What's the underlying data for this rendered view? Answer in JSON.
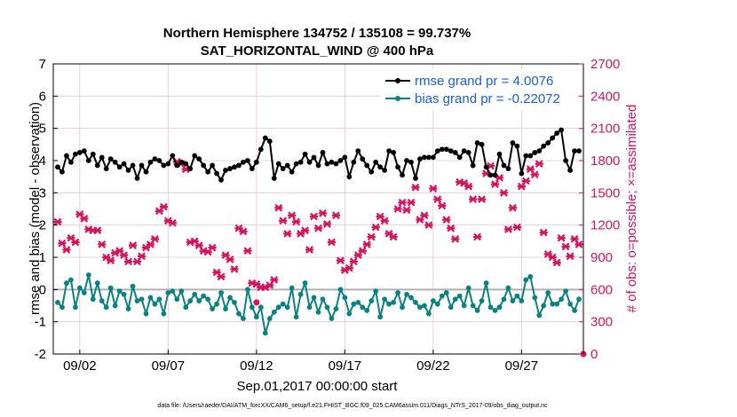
{
  "chart_data": {
    "type": "line",
    "title": "Northern Hemisphere 134752 / 135108 = 99.737%",
    "subtitle": "SAT_HORIZONTAL_WIND @ 400 hPa",
    "xlabel": "Sep.01,2017 00:00:00 start",
    "ylabel_left": "rmse and bias (model - observation)",
    "ylabel_right": "# of obs: o=possible; ×=assimilated",
    "footnote": "data file: /Users/raeder/DAI/ATM_forcXX/CAM6_setup/f.e21.FHIST_BGC.f09_025.CAM6assim.011/Diags_NTrS_2017-09/obs_diag_output.nc",
    "xlim": [
      0.5,
      30.5
    ],
    "ylim_left": [
      -2,
      7
    ],
    "ylim_right": [
      0,
      2700
    ],
    "x_ticks": [
      2,
      7,
      12,
      17,
      22,
      27
    ],
    "x_tick_labels": [
      "09/02",
      "09/07",
      "09/12",
      "09/17",
      "09/22",
      "09/27"
    ],
    "y_ticks_left": [
      -2,
      -1,
      0,
      1,
      2,
      3,
      4,
      5,
      6,
      7
    ],
    "y_ticks_right": [
      0,
      300,
      600,
      900,
      1200,
      1500,
      1800,
      2100,
      2400,
      2700
    ],
    "grid": true,
    "zero_line": true,
    "legend": {
      "placement": "top-right",
      "entries": [
        "rmse grand pr = 4.0076",
        "bias grand pr = -0.22072"
      ]
    },
    "colors": {
      "rmse": "#000000",
      "bias": "#0b8282",
      "counts": "#d6145e",
      "legend_text": "#1a5fd6",
      "grid": "#e6c6d2",
      "zero_line": "#b0b0b0"
    },
    "x": [
      0.75,
      1.0,
      1.25,
      1.5,
      1.75,
      2.0,
      2.25,
      2.5,
      2.75,
      3.0,
      3.25,
      3.5,
      3.75,
      4.0,
      4.25,
      4.5,
      4.75,
      5.0,
      5.25,
      5.5,
      5.75,
      6.0,
      6.25,
      6.5,
      6.75,
      7.0,
      7.25,
      7.5,
      7.75,
      8.0,
      8.25,
      8.5,
      8.75,
      9.0,
      9.25,
      9.5,
      9.75,
      10.0,
      10.25,
      10.5,
      10.75,
      11.0,
      11.25,
      11.5,
      11.75,
      12.0,
      12.25,
      12.5,
      12.75,
      13.0,
      13.25,
      13.5,
      13.75,
      14.0,
      14.25,
      14.5,
      14.75,
      15.0,
      15.25,
      15.5,
      15.75,
      16.0,
      16.25,
      16.5,
      16.75,
      17.0,
      17.25,
      17.5,
      17.75,
      18.0,
      18.25,
      18.5,
      18.75,
      19.0,
      19.25,
      19.5,
      19.75,
      20.0,
      20.25,
      20.5,
      20.75,
      21.0,
      21.25,
      21.5,
      21.75,
      22.0,
      22.25,
      22.5,
      22.75,
      23.0,
      23.25,
      23.5,
      23.75,
      24.0,
      24.25,
      24.5,
      24.75,
      25.0,
      25.25,
      25.5,
      25.75,
      26.0,
      26.25,
      26.5,
      26.75,
      27.0,
      27.25,
      27.5,
      27.75,
      28.0,
      28.25,
      28.5,
      28.75,
      29.0,
      29.25,
      29.5,
      29.75,
      30.0,
      30.25
    ],
    "series": [
      {
        "name": "rmse grand pr = 4.0076",
        "axis": "left",
        "values": [
          3.8,
          3.65,
          4.15,
          3.95,
          4.2,
          4.25,
          4.3,
          4.0,
          4.2,
          3.85,
          4.1,
          3.75,
          4.05,
          3.95,
          3.8,
          3.9,
          3.7,
          3.85,
          3.45,
          3.85,
          3.65,
          3.95,
          4.05,
          4.0,
          3.85,
          3.9,
          4.15,
          3.85,
          3.95,
          3.9,
          3.75,
          4.15,
          4.05,
          3.85,
          3.65,
          3.85,
          3.6,
          3.4,
          3.7,
          3.75,
          3.8,
          3.85,
          3.95,
          4.0,
          3.75,
          3.95,
          4.35,
          4.7,
          4.6,
          3.45,
          3.9,
          3.75,
          3.85,
          3.65,
          3.9,
          3.95,
          4.2,
          3.95,
          4.1,
          3.85,
          4.25,
          3.9,
          3.95,
          3.9,
          4.0,
          4.1,
          3.5,
          3.95,
          4.3,
          4.05,
          3.85,
          3.65,
          3.95,
          3.8,
          3.7,
          4.3,
          4.25,
          3.8,
          3.55,
          4.0,
          3.95,
          3.45,
          4.05,
          4.1,
          4.1,
          4.1,
          4.3,
          4.35,
          4.35,
          4.3,
          4.25,
          4.1,
          4.3,
          4.25,
          3.85,
          4.55,
          4.5,
          3.8,
          3.55,
          3.55,
          4.2,
          3.85,
          3.75,
          4.55,
          4.45,
          3.6,
          4.15,
          4.15,
          4.25,
          4.3,
          4.45,
          4.55,
          4.7,
          4.85,
          4.95,
          4.0,
          3.7,
          4.3,
          4.3
        ],
        "marker": "filled-circle"
      },
      {
        "name": "bias grand pr = -0.22072",
        "axis": "left",
        "values": [
          -0.4,
          -0.55,
          0.2,
          0.3,
          -0.55,
          0.05,
          -0.1,
          0.45,
          -0.3,
          0.2,
          -0.35,
          -0.55,
          0.05,
          -0.5,
          -0.05,
          -0.15,
          -0.6,
          0.1,
          -0.35,
          -0.3,
          -0.75,
          -0.25,
          -0.45,
          -0.3,
          -0.75,
          -0.1,
          -0.05,
          -0.3,
          -0.05,
          -0.55,
          -0.35,
          -0.15,
          -0.35,
          -0.2,
          -0.3,
          -0.6,
          -0.45,
          -0.1,
          -0.6,
          -0.25,
          -0.4,
          -0.75,
          -0.9,
          0.0,
          -0.55,
          -0.85,
          -0.55,
          -1.35,
          -0.9,
          -0.7,
          -0.55,
          -0.45,
          -0.55,
          0.05,
          -0.85,
          -0.15,
          0.2,
          -0.55,
          -0.25,
          -0.7,
          -0.3,
          -0.55,
          -0.9,
          -0.6,
          0.0,
          -0.25,
          -0.75,
          -0.45,
          -0.4,
          -0.55,
          -0.65,
          -0.35,
          -0.05,
          -0.85,
          -0.3,
          -0.45,
          -0.4,
          -0.1,
          -0.55,
          -0.15,
          -0.25,
          -0.4,
          -0.55,
          -0.5,
          -0.75,
          -0.35,
          -0.45,
          -0.2,
          -0.1,
          -0.55,
          -0.3,
          -0.2,
          -0.5,
          0.05,
          -0.5,
          -0.65,
          -0.35,
          0.2,
          -0.55,
          -0.65,
          -0.55,
          -0.3,
          0.05,
          -0.35,
          -0.2,
          -0.35,
          0.3,
          0.4,
          -0.25,
          -0.8,
          -0.5,
          -0.1,
          -0.45,
          -0.45,
          -0.3,
          -0.05,
          -0.45,
          -0.65,
          -0.3
        ],
        "marker": "filled-circle"
      },
      {
        "name": "assimilated",
        "axis": "right",
        "values": [
          1230,
          1030,
          970,
          1080,
          1040,
          1300,
          1260,
          1160,
          1150,
          1150,
          1020,
          900,
          870,
          940,
          960,
          920,
          860,
          1010,
          860,
          910,
          990,
          1020,
          1070,
          1330,
          1370,
          1240,
          1220,
          1790,
          1770,
          1720,
          1040,
          1050,
          1010,
          960,
          950,
          990,
          760,
          720,
          920,
          880,
          790,
          1170,
          1140,
          960,
          660,
          650,
          620,
          620,
          640,
          690,
          1360,
          1240,
          1120,
          1290,
          1230,
          1120,
          1150,
          970,
          1280,
          1170,
          1310,
          1210,
          1040,
          1290,
          870,
          780,
          800,
          860,
          920,
          960,
          1020,
          1090,
          1180,
          1280,
          1240,
          1120,
          1090,
          1350,
          1410,
          1340,
          1410,
          1550,
          1250,
          1290,
          1200,
          1540,
          1440,
          1380,
          1250,
          1170,
          1070,
          1600,
          1590,
          1560,
          1440,
          1090,
          1440,
          1680,
          1750,
          1580,
          1640,
          1500,
          1160,
          1360,
          1180,
          1560,
          1610,
          1720,
          1670,
          1770,
          1130,
          930,
          900,
          850,
          1080,
          1000,
          910,
          1070,
          1020
        ],
        "marker": "x"
      }
    ],
    "possible_outliers": [
      {
        "x": 12.0,
        "y": 480
      },
      {
        "x": 30.5,
        "y": 0
      }
    ]
  }
}
